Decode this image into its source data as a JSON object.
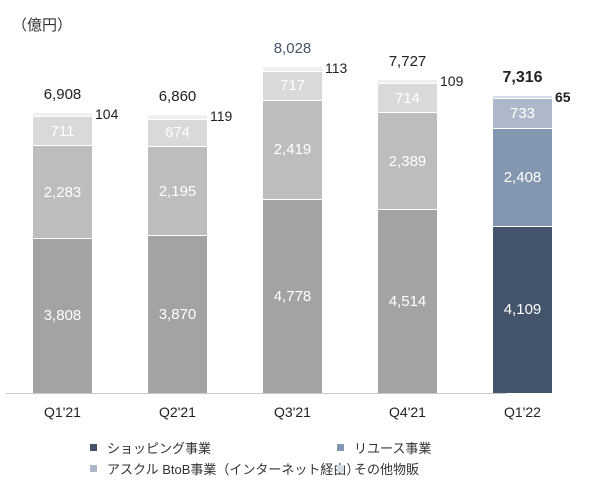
{
  "unit_label": "（億円）",
  "colors": {
    "gray_shopping": "#a3a3a3",
    "gray_reuse": "#bdbdbd",
    "gray_askul": "#d9d9d9",
    "gray_other": "#f0f0f0",
    "navy_shopping": "#44546a",
    "navy_reuse": "#8497b0",
    "navy_askul": "#adb9ca",
    "navy_other": "#d6dce5",
    "q3_total_text": "#44546a"
  },
  "legend": [
    {
      "label": "ショッピング事業",
      "color": "#44546a"
    },
    {
      "label": "リユース事業",
      "color": "#8497b0"
    },
    {
      "label": "アスクル BtoB事業（インターネット経由）",
      "color": "#adb9ca"
    },
    {
      "label": "その他物販",
      "color": "#d6dce5"
    }
  ],
  "chart_data": {
    "type": "bar",
    "stacked": true,
    "title": "",
    "ylabel": "（億円）",
    "xlabel": "",
    "categories": [
      "Q1'21",
      "Q2'21",
      "Q3'21",
      "Q4'21",
      "Q1'22"
    ],
    "series": [
      {
        "name": "ショッピング事業",
        "values": [
          3808,
          3870,
          4778,
          4514,
          4109
        ]
      },
      {
        "name": "リユース事業",
        "values": [
          2283,
          2195,
          2419,
          2389,
          2408
        ]
      },
      {
        "name": "アスクル BtoB事業（インターネット経由）",
        "values": [
          711,
          674,
          717,
          714,
          733
        ]
      },
      {
        "name": "その他物販",
        "values": [
          104,
          119,
          113,
          109,
          65
        ]
      }
    ],
    "totals": [
      6908,
      6860,
      8028,
      7727,
      7316
    ],
    "total_labels": [
      "6,908",
      "6,860",
      "8,028",
      "7,727",
      "7,316"
    ],
    "segment_labels": [
      [
        "3,808",
        "2,283",
        "711",
        "104"
      ],
      [
        "3,870",
        "2,195",
        "674",
        "119"
      ],
      [
        "4,778",
        "2,419",
        "717",
        "113"
      ],
      [
        "4,514",
        "2,389",
        "714",
        "109"
      ],
      [
        "4,109",
        "2,408",
        "733",
        "65"
      ]
    ],
    "highlight_category": "Q1'22",
    "grid": false,
    "legend_position": "bottom"
  }
}
